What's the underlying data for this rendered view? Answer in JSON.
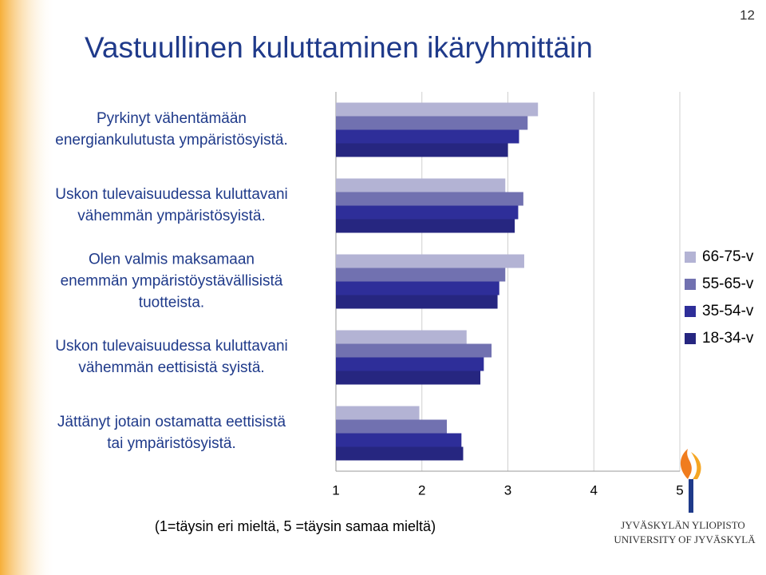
{
  "page_number": "12",
  "logo": [
    "JYVÄSKYLÄN YLIOPISTO",
    "UNIVERSITY OF JYVÄSKYLÄ"
  ],
  "chart_data": {
    "type": "hbar",
    "title": "Vastuullinen kuluttaminen ikäryhmittäin",
    "x_label": "(1=täysin eri mieltä, 5 =täysin samaa mieltä)",
    "categories": [
      [
        "Pyrkinyt vähentämään",
        "energiankulutusta ympäristösyistä."
      ],
      [
        "Uskon tulevaisuudessa kuluttavani",
        "vähemmän ympäristösyistä."
      ],
      [
        "Olen valmis maksamaan",
        "enemmän ympäristöystävällisistä",
        "tuotteista."
      ],
      [
        "Uskon tulevaisuudessa kuluttavani",
        "vähemmän eettisistä syistä."
      ],
      [
        "Jättänyt jotain ostamatta eettisistä",
        "tai ympäristösyistä."
      ]
    ],
    "series": [
      {
        "name": "66-75-v",
        "color": "#b3b3d4",
        "values": [
          3.35,
          2.97,
          3.19,
          2.52,
          1.97
        ]
      },
      {
        "name": "55-65-v",
        "color": "#7171b0",
        "values": [
          3.23,
          3.18,
          2.97,
          2.81,
          2.29
        ]
      },
      {
        "name": "35-54-v",
        "color": "#2e2e99",
        "values": [
          3.13,
          3.12,
          2.9,
          2.72,
          2.46
        ]
      },
      {
        "name": "18-34-v",
        "color": "#262680",
        "values": [
          3.0,
          3.08,
          2.88,
          2.68,
          2.48
        ]
      }
    ],
    "xlim": [
      1,
      5
    ],
    "xticks": [
      1,
      2,
      3,
      4,
      5
    ],
    "grid": true
  }
}
